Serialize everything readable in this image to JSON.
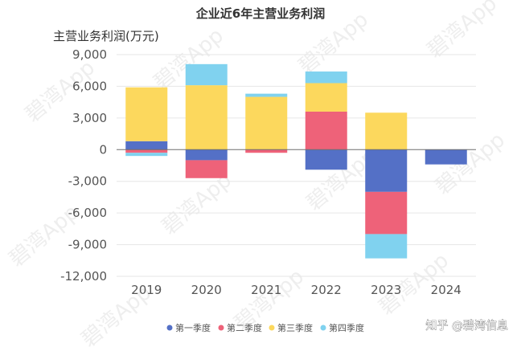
{
  "chart_data": {
    "type": "bar",
    "stacked": true,
    "title": "企业近6年主营业务利润",
    "ylabel": "主营业务利润(万元)",
    "xlabel": "",
    "categories": [
      "2019",
      "2020",
      "2021",
      "2022",
      "2023",
      "2024"
    ],
    "ylim": [
      -12000,
      9000
    ],
    "yticks": [
      9000,
      6000,
      3000,
      0,
      -3000,
      -6000,
      -9000,
      -12000
    ],
    "ytick_labels": [
      "9,000",
      "6,000",
      "3,000",
      "0",
      "-3,000",
      "-6,000",
      "-9,000",
      "-12,000"
    ],
    "grid": true,
    "legend_position": "bottom",
    "series": [
      {
        "name": "第一季度",
        "color": "#5470c6",
        "values": [
          800,
          -1000,
          0,
          -1900,
          -4000,
          -1400
        ]
      },
      {
        "name": "第二季度",
        "color": "#ee6279",
        "values": [
          -300,
          -1700,
          -300,
          3600,
          -4000,
          0
        ]
      },
      {
        "name": "第三季度",
        "color": "#fcd85d",
        "values": [
          5100,
          6100,
          5000,
          2700,
          3500,
          0
        ]
      },
      {
        "name": "第四季度",
        "color": "#80d2ef",
        "values": [
          -300,
          2000,
          300,
          1100,
          -2300,
          0
        ]
      }
    ]
  },
  "watermark_text": "碧湾App",
  "credit": "知乎 @碧湾信息"
}
